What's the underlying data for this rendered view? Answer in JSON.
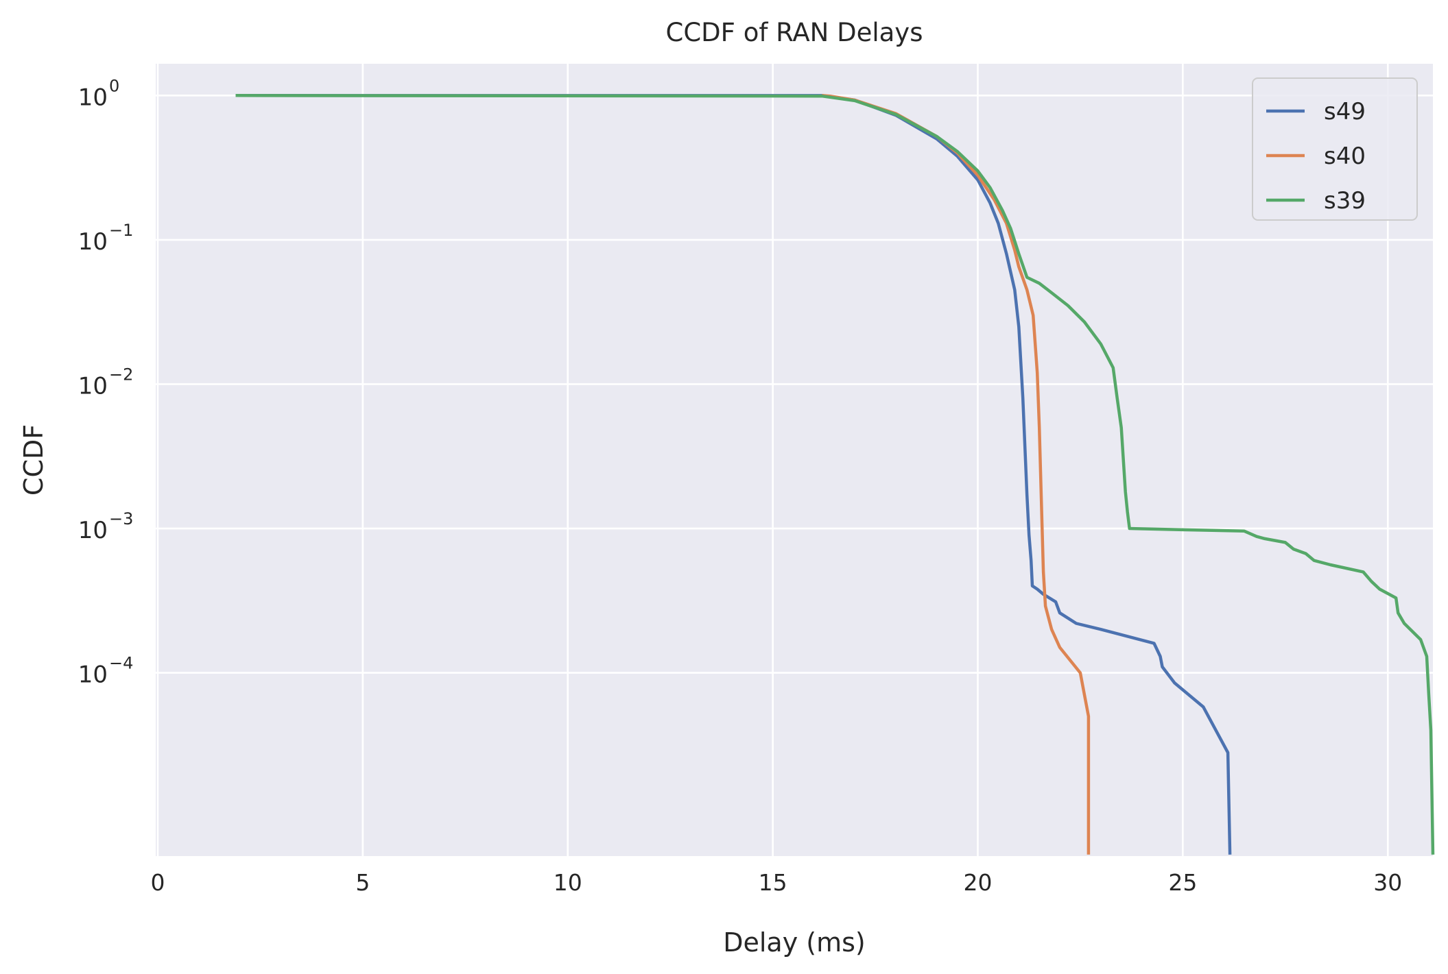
{
  "chart_data": {
    "type": "line",
    "title": "CCDF of RAN Delays",
    "xlabel": "Delay (ms)",
    "ylabel": "CCDF",
    "y_scale": "log",
    "xlim": [
      -0.05,
      31.1
    ],
    "ylim_log10": [
      -5.27,
      0.22
    ],
    "x_ticks": [
      0,
      5,
      10,
      15,
      20,
      25,
      30
    ],
    "y_ticks": [
      {
        "exp": 0,
        "base": "10",
        "label": "0"
      },
      {
        "exp": -1,
        "base": "10",
        "label": "−1"
      },
      {
        "exp": -2,
        "base": "10",
        "label": "−2"
      },
      {
        "exp": -3,
        "base": "10",
        "label": "−3"
      },
      {
        "exp": -4,
        "base": "10",
        "label": "−4"
      }
    ],
    "grid": true,
    "legend_position": "top-right",
    "background_color": "#EAEAF2",
    "grid_color": "#FFFFFF",
    "series": [
      {
        "name": "s49",
        "color": "#4C72B0",
        "points": [
          [
            1.9,
            1.0
          ],
          [
            16.2,
            0.999
          ],
          [
            17.0,
            0.93
          ],
          [
            18.0,
            0.73
          ],
          [
            19.0,
            0.5
          ],
          [
            19.5,
            0.38
          ],
          [
            20.0,
            0.26
          ],
          [
            20.3,
            0.18
          ],
          [
            20.5,
            0.13
          ],
          [
            20.7,
            0.08
          ],
          [
            20.9,
            0.045
          ],
          [
            21.0,
            0.025
          ],
          [
            21.1,
            0.008
          ],
          [
            21.2,
            0.0017
          ],
          [
            21.25,
            0.0009
          ],
          [
            21.3,
            0.0006
          ],
          [
            21.33,
            0.0004
          ],
          [
            21.45,
            0.00038
          ],
          [
            21.6,
            0.00035
          ],
          [
            21.9,
            0.00031
          ],
          [
            22.0,
            0.00026
          ],
          [
            22.4,
            0.00022
          ],
          [
            23.0,
            0.0002
          ],
          [
            24.3,
            0.00016
          ],
          [
            24.45,
            0.00013
          ],
          [
            24.5,
            0.00011
          ],
          [
            24.8,
            8.5e-05
          ],
          [
            25.5,
            5.8e-05
          ],
          [
            26.1,
            2.8e-05
          ],
          [
            26.15,
            5.5e-06
          ]
        ]
      },
      {
        "name": "s40",
        "color": "#DD8452",
        "points": [
          [
            16.2,
            1.0
          ],
          [
            16.4,
            0.99
          ],
          [
            17.0,
            0.93
          ],
          [
            18.0,
            0.75
          ],
          [
            19.0,
            0.52
          ],
          [
            19.5,
            0.4
          ],
          [
            20.0,
            0.28
          ],
          [
            20.4,
            0.19
          ],
          [
            20.7,
            0.13
          ],
          [
            20.9,
            0.085
          ],
          [
            21.0,
            0.065
          ],
          [
            21.2,
            0.045
          ],
          [
            21.35,
            0.03
          ],
          [
            21.45,
            0.012
          ],
          [
            21.5,
            0.005
          ],
          [
            21.55,
            0.0016
          ],
          [
            21.6,
            0.0005
          ],
          [
            21.65,
            0.00029
          ],
          [
            21.8,
            0.0002
          ],
          [
            22.0,
            0.00015
          ],
          [
            22.5,
            0.0001
          ],
          [
            22.7,
            5e-05
          ],
          [
            22.7,
            5.5e-06
          ]
        ]
      },
      {
        "name": "s39",
        "color": "#55A868",
        "points": [
          [
            1.9,
            1.0
          ],
          [
            16.2,
            0.99
          ],
          [
            17.0,
            0.92
          ],
          [
            18.0,
            0.74
          ],
          [
            19.0,
            0.52
          ],
          [
            19.5,
            0.41
          ],
          [
            20.0,
            0.3
          ],
          [
            20.3,
            0.23
          ],
          [
            20.6,
            0.16
          ],
          [
            20.8,
            0.12
          ],
          [
            21.0,
            0.08
          ],
          [
            21.2,
            0.055
          ],
          [
            21.5,
            0.05
          ],
          [
            21.8,
            0.043
          ],
          [
            22.2,
            0.035
          ],
          [
            22.6,
            0.027
          ],
          [
            23.0,
            0.019
          ],
          [
            23.3,
            0.013
          ],
          [
            23.4,
            0.008
          ],
          [
            23.5,
            0.005
          ],
          [
            23.55,
            0.003
          ],
          [
            23.6,
            0.0018
          ],
          [
            23.65,
            0.0013
          ],
          [
            23.7,
            0.001
          ],
          [
            25.0,
            0.00098
          ],
          [
            26.5,
            0.00096
          ],
          [
            26.8,
            0.00088
          ],
          [
            27.0,
            0.00085
          ],
          [
            27.5,
            0.0008
          ],
          [
            27.7,
            0.00072
          ],
          [
            28.0,
            0.00067
          ],
          [
            28.2,
            0.0006
          ],
          [
            28.6,
            0.00056
          ],
          [
            29.4,
            0.0005
          ],
          [
            29.6,
            0.00043
          ],
          [
            29.8,
            0.00038
          ],
          [
            30.2,
            0.00033
          ],
          [
            30.25,
            0.00026
          ],
          [
            30.4,
            0.00022
          ],
          [
            30.8,
            0.00017
          ],
          [
            30.95,
            0.00013
          ],
          [
            31.0,
            7e-05
          ],
          [
            31.05,
            4e-05
          ],
          [
            31.1,
            5.5e-06
          ]
        ]
      }
    ]
  }
}
